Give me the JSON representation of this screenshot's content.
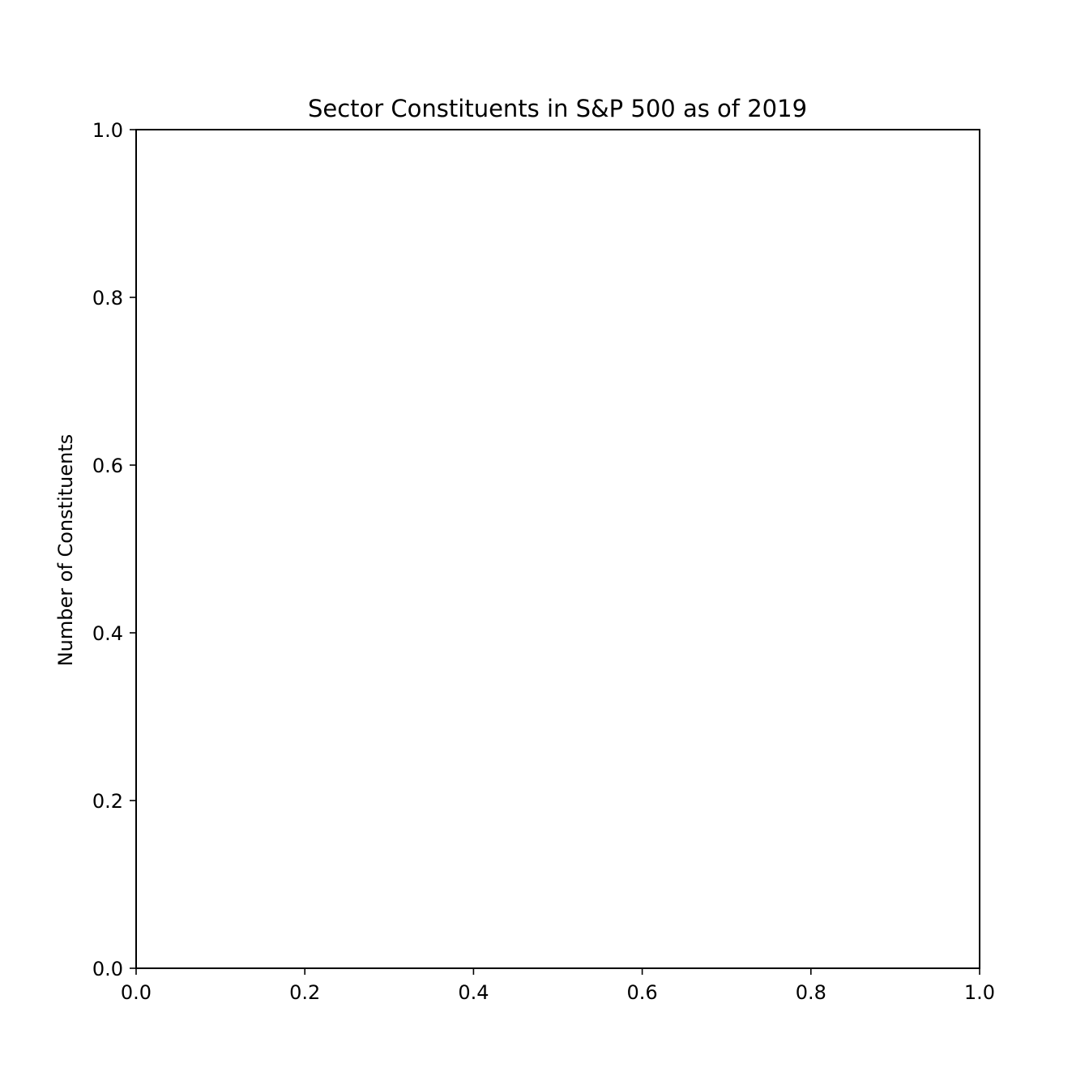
{
  "chart_data": {
    "type": "bar",
    "title": "Sector Constituents in S&P 500 as of 2019",
    "xlabel": "",
    "ylabel": "Number of Constituents",
    "categories": [],
    "values": [],
    "xlim": [
      0.0,
      1.0
    ],
    "ylim": [
      0.0,
      1.0
    ],
    "xticks": [
      "0.0",
      "0.2",
      "0.4",
      "0.6",
      "0.8",
      "1.0"
    ],
    "yticks": [
      "0.0",
      "0.2",
      "0.4",
      "0.6",
      "0.8",
      "1.0"
    ],
    "grid": false,
    "legend": "none"
  },
  "colors": {
    "axis": "#000000",
    "background": "#ffffff"
  }
}
